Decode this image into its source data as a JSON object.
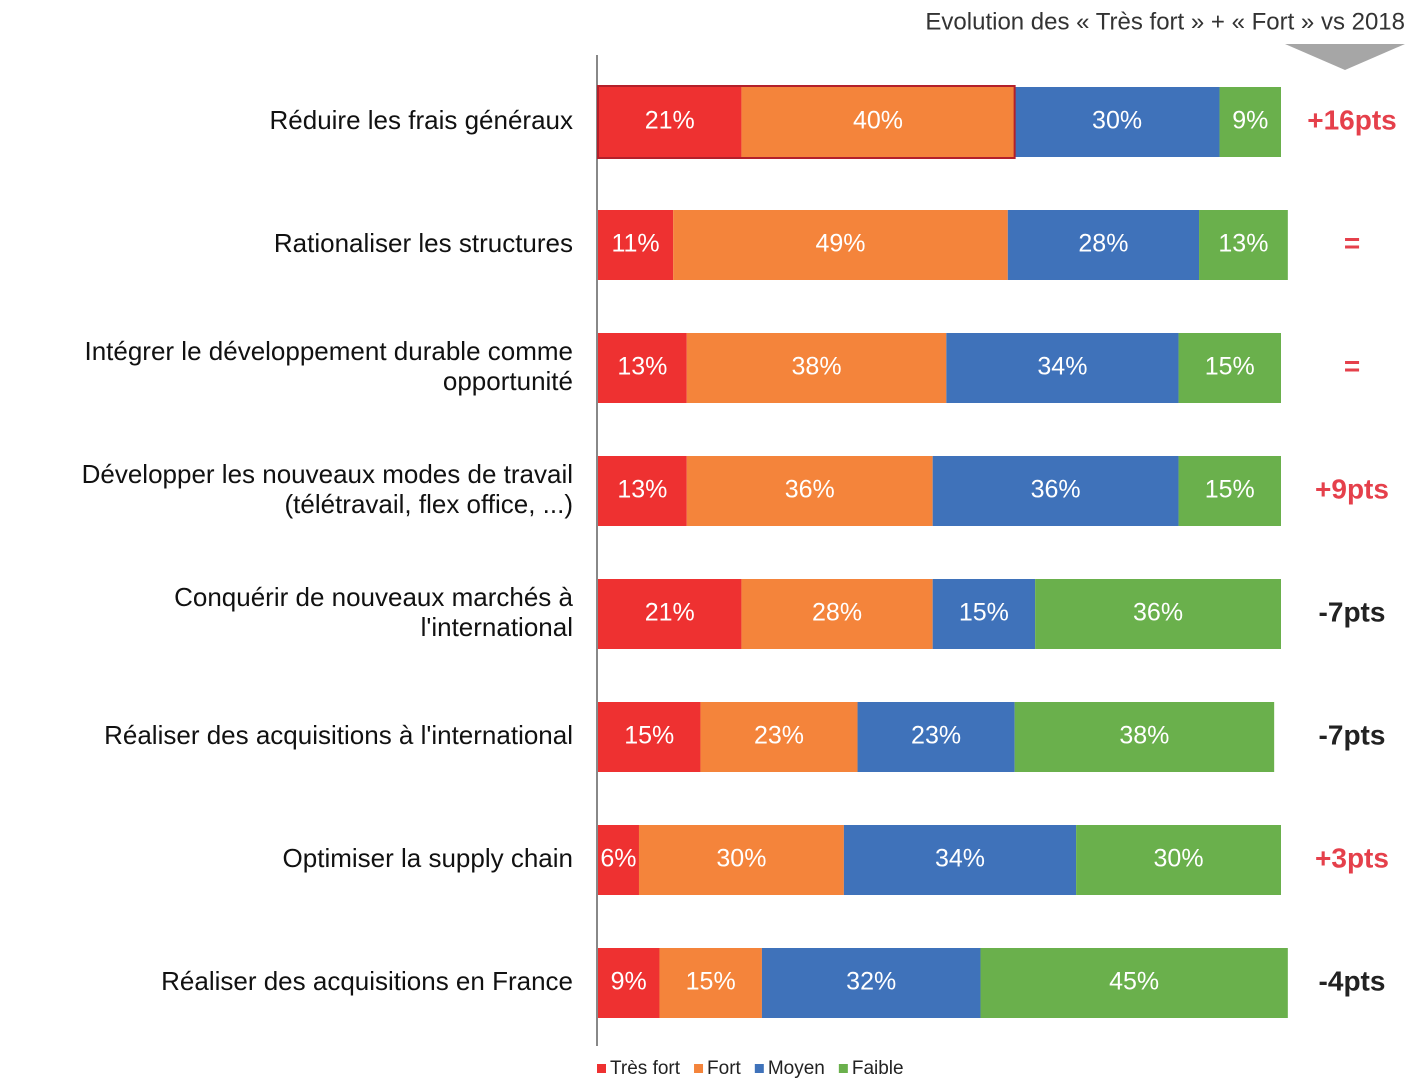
{
  "chart_data": {
    "type": "stacked_bar_horizontal",
    "subtitle": "Evolution des « Très fort » + « Fort » vs 2018",
    "categories": [
      [
        "Réduire les frais généraux"
      ],
      [
        "Rationaliser les structures"
      ],
      [
        "Intégrer le développement durable comme",
        "opportunité"
      ],
      [
        "Développer les nouveaux modes de travail",
        "(télétravail, flex office, ...)"
      ],
      [
        "Conquérir de nouveaux marchés à",
        "l'international"
      ],
      [
        "Réaliser des acquisitions à l'international"
      ],
      [
        "Optimiser la supply chain"
      ],
      [
        "Réaliser des acquisitions en France"
      ]
    ],
    "series": [
      {
        "name": "Très fort",
        "color": "#ee3131",
        "values": [
          21,
          11,
          13,
          13,
          21,
          15,
          6,
          9
        ],
        "value_labels": [
          "21%",
          "11%",
          "13%",
          "13%",
          "21%",
          "15%",
          "6%",
          "9%"
        ]
      },
      {
        "name": "Fort",
        "color": "#f4843b",
        "values": [
          40,
          49,
          38,
          36,
          28,
          23,
          30,
          15
        ],
        "value_labels": [
          "40%",
          "49%",
          "38%",
          "36%",
          "28%",
          "23%",
          "30%",
          "15%"
        ]
      },
      {
        "name": "Moyen",
        "color": "#3f72ba",
        "values": [
          30,
          28,
          34,
          36,
          15,
          23,
          34,
          32
        ],
        "value_labels": [
          "30%",
          "28%",
          "34%",
          "36%",
          "15%",
          "23%",
          "34%",
          "32%"
        ]
      },
      {
        "name": "Faible",
        "color": "#6ab04c",
        "values": [
          9,
          13,
          15,
          15,
          36,
          38,
          30,
          45
        ],
        "value_labels": [
          "9%",
          "13%",
          "15%",
          "15%",
          "36%",
          "38%",
          "30%",
          "45%"
        ]
      }
    ],
    "xlim": [
      0,
      100
    ],
    "annotations": [
      "+16pts",
      "=",
      "=",
      "+9pts",
      "-7pts",
      "-7pts",
      "+3pts",
      "-4pts"
    ],
    "annotation_colors": [
      "#e5404b",
      "#e5404b",
      "#e5404b",
      "#e5404b",
      "#222222",
      "#222222",
      "#e5404b",
      "#222222"
    ],
    "highlight_color": "#b3202a",
    "legend_position": "bottom"
  }
}
